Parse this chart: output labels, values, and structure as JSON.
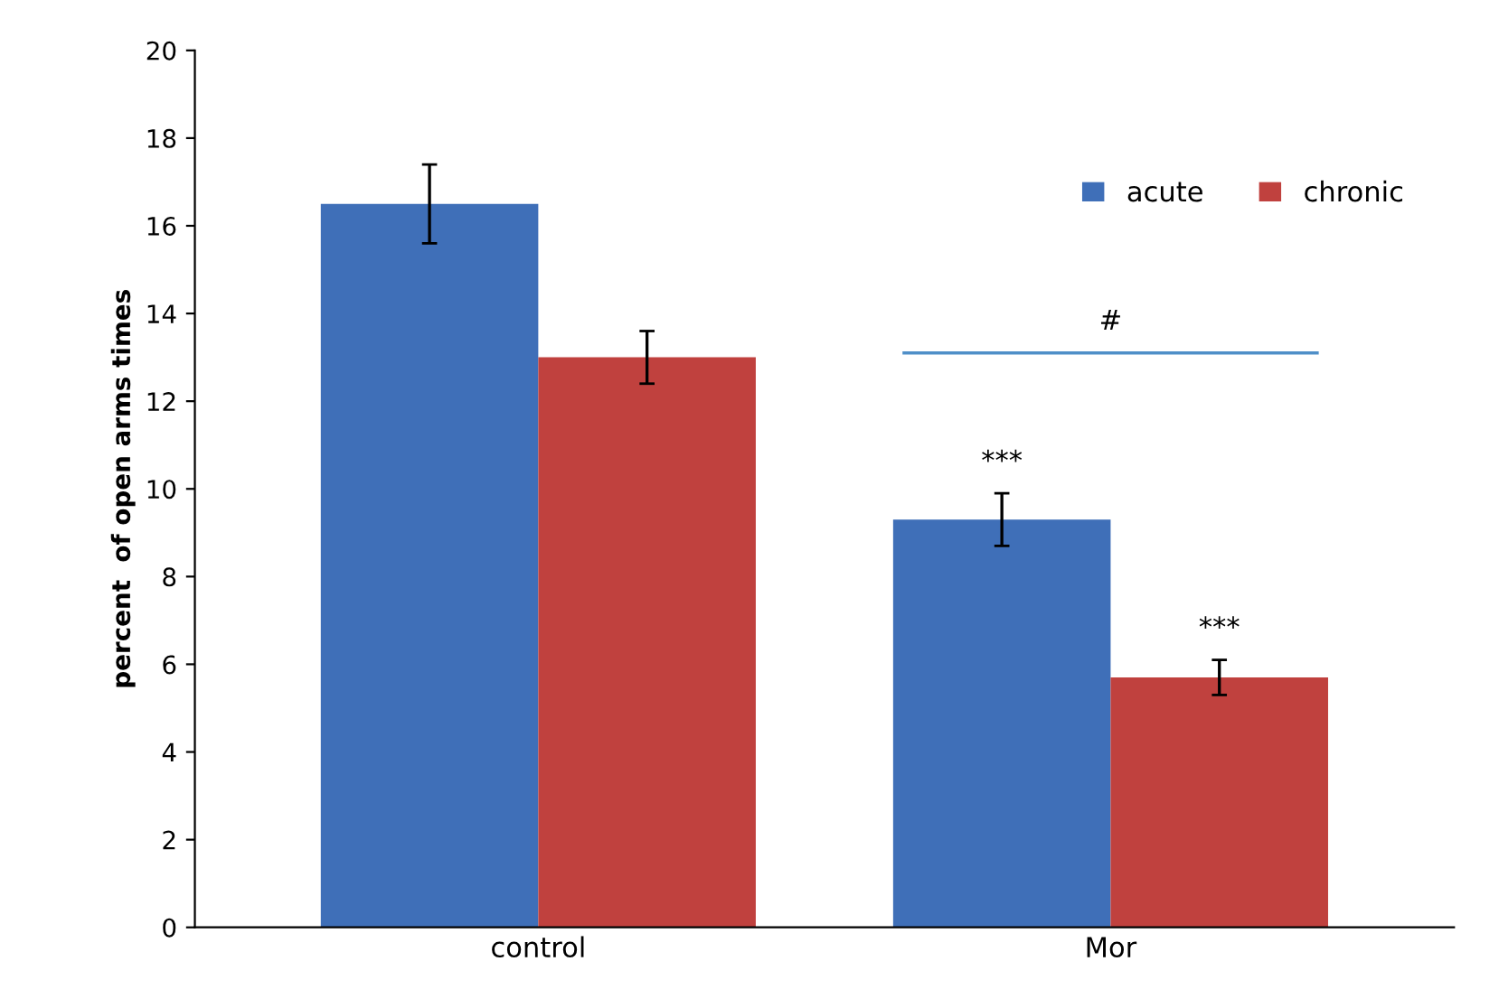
{
  "chart_data": {
    "type": "bar",
    "ylabel": "percent  of open arms times",
    "categories": [
      "control",
      "Mor"
    ],
    "series": [
      {
        "name": "acute",
        "color": "#3f6fb8",
        "values": [
          16.5,
          9.3
        ],
        "errors": [
          0.9,
          0.6
        ]
      },
      {
        "name": "chronic",
        "color": "#c0413e",
        "values": [
          13.0,
          5.7
        ],
        "errors": [
          0.6,
          0.4
        ]
      }
    ],
    "ylim": [
      0,
      20
    ],
    "yticks": [
      0,
      2,
      4,
      6,
      8,
      10,
      12,
      14,
      16,
      18,
      20
    ],
    "annotations": [
      "***",
      "***",
      "#"
    ],
    "grid": false,
    "legend": "top right"
  }
}
